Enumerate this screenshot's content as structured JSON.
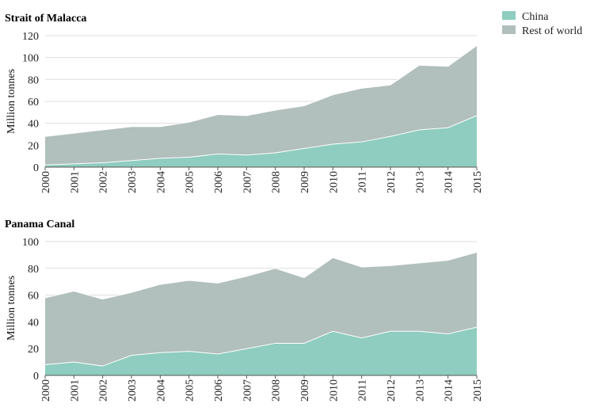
{
  "legend": {
    "china_label": "China",
    "row_label": "Rest of world"
  },
  "colors": {
    "china": "#8ecdbf",
    "rest_of_world": "#b1bfbd",
    "grid": "#dddddd",
    "axis": "#555555"
  },
  "chart_data": [
    {
      "type": "area",
      "stacked": true,
      "title": "Strait of Malacca",
      "ylabel": "Million tonnes",
      "xlabel": "",
      "ylim": [
        0,
        120
      ],
      "yticks": [
        0,
        20,
        40,
        60,
        80,
        100,
        120
      ],
      "grid": true,
      "legend_position": "top-right",
      "x": [
        "2000",
        "2001",
        "2002",
        "2003",
        "2004",
        "2005",
        "2006",
        "2007",
        "2008",
        "2009",
        "2010",
        "2011",
        "2012",
        "2013",
        "2014",
        "2015"
      ],
      "series": [
        {
          "name": "China",
          "values": [
            2,
            3,
            4,
            6,
            8,
            9,
            12,
            11,
            13,
            17,
            21,
            23,
            28,
            34,
            36,
            47
          ]
        },
        {
          "name": "Rest of world",
          "values": [
            26,
            28,
            30,
            31,
            29,
            32,
            36,
            36,
            39,
            39,
            45,
            49,
            47,
            59,
            56,
            64
          ]
        }
      ]
    },
    {
      "type": "area",
      "stacked": true,
      "title": "Panama Canal",
      "ylabel": "Million tonnes",
      "xlabel": "",
      "ylim": [
        0,
        100
      ],
      "yticks": [
        0,
        20,
        40,
        60,
        80,
        100
      ],
      "grid": true,
      "x": [
        "2000",
        "2001",
        "2002",
        "2003",
        "2004",
        "2005",
        "2006",
        "2007",
        "2008",
        "2009",
        "2010",
        "2011",
        "2012",
        "2013",
        "2014",
        "2015"
      ],
      "series": [
        {
          "name": "China",
          "values": [
            8,
            10,
            7,
            15,
            17,
            18,
            16,
            20,
            24,
            24,
            33,
            28,
            33,
            33,
            31,
            36
          ]
        },
        {
          "name": "Rest of world",
          "values": [
            50,
            53,
            50,
            47,
            51,
            53,
            53,
            54,
            56,
            49,
            55,
            53,
            49,
            51,
            55,
            56
          ]
        }
      ]
    }
  ]
}
